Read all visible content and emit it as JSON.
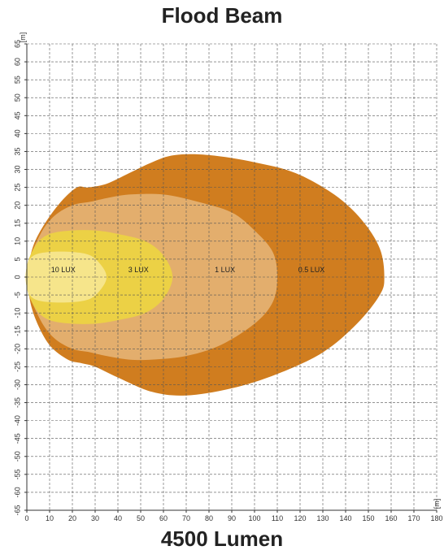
{
  "chart_data": {
    "type": "area",
    "title": "Flood Beam",
    "caption": "4500 Lumen",
    "x_unit": "[m]",
    "y_unit": "[m]",
    "xlim": [
      0,
      180
    ],
    "ylim": [
      -65,
      65
    ],
    "x_ticks": [
      0,
      10,
      20,
      30,
      40,
      50,
      60,
      70,
      80,
      90,
      100,
      110,
      120,
      130,
      140,
      150,
      160,
      170,
      180
    ],
    "y_ticks": [
      -65,
      -60,
      -55,
      -50,
      -45,
      -40,
      -35,
      -30,
      -25,
      -20,
      -15,
      -10,
      -5,
      0,
      5,
      10,
      15,
      20,
      25,
      30,
      35,
      40,
      45,
      50,
      55,
      60,
      65
    ],
    "grid": true,
    "zones": [
      {
        "name": "0.5 LUX",
        "color": "#d07d1f",
        "label_at": [
          125,
          2
        ],
        "outline": [
          [
            1,
            -5
          ],
          [
            4,
            -12
          ],
          [
            10,
            -19
          ],
          [
            18,
            -23
          ],
          [
            24,
            -24
          ],
          [
            30,
            -25
          ],
          [
            40,
            -28
          ],
          [
            55,
            -32
          ],
          [
            70,
            -33
          ],
          [
            90,
            -31
          ],
          [
            110,
            -27
          ],
          [
            130,
            -21
          ],
          [
            145,
            -13
          ],
          [
            155,
            -5
          ],
          [
            157,
            0
          ],
          [
            155,
            8
          ],
          [
            147,
            16
          ],
          [
            135,
            23
          ],
          [
            118,
            29
          ],
          [
            100,
            32
          ],
          [
            80,
            34
          ],
          [
            65,
            34
          ],
          [
            55,
            32
          ],
          [
            45,
            29
          ],
          [
            35,
            26
          ],
          [
            27,
            25
          ],
          [
            22,
            25
          ],
          [
            15,
            21
          ],
          [
            8,
            15
          ],
          [
            3,
            9
          ],
          [
            1,
            3
          ]
        ]
      },
      {
        "name": "1 LUX",
        "color": "#e3ae6d",
        "label_at": [
          87,
          2
        ],
        "outline": [
          [
            1,
            -4
          ],
          [
            6,
            -12
          ],
          [
            12,
            -17
          ],
          [
            20,
            -20
          ],
          [
            28,
            -21
          ],
          [
            35,
            -22
          ],
          [
            45,
            -23
          ],
          [
            55,
            -23
          ],
          [
            70,
            -22
          ],
          [
            85,
            -19
          ],
          [
            100,
            -13
          ],
          [
            108,
            -7
          ],
          [
            110,
            0
          ],
          [
            108,
            7
          ],
          [
            100,
            13
          ],
          [
            90,
            18
          ],
          [
            75,
            21
          ],
          [
            60,
            23
          ],
          [
            45,
            23
          ],
          [
            35,
            22
          ],
          [
            28,
            21
          ],
          [
            20,
            20
          ],
          [
            12,
            17
          ],
          [
            6,
            12
          ],
          [
            1,
            4
          ]
        ]
      },
      {
        "name": "3 LUX",
        "color": "#ecd145",
        "label_at": [
          49,
          2
        ],
        "outline": [
          [
            0,
            -3
          ],
          [
            4,
            -9
          ],
          [
            10,
            -12
          ],
          [
            20,
            -13
          ],
          [
            30,
            -13
          ],
          [
            40,
            -12
          ],
          [
            52,
            -10
          ],
          [
            60,
            -6
          ],
          [
            64,
            0
          ],
          [
            60,
            6
          ],
          [
            52,
            10
          ],
          [
            40,
            12
          ],
          [
            30,
            13
          ],
          [
            20,
            13
          ],
          [
            10,
            12
          ],
          [
            4,
            9
          ],
          [
            0,
            3
          ]
        ]
      },
      {
        "name": "10 LUX",
        "color": "#f6e58b",
        "label_at": [
          16,
          2
        ],
        "outline": [
          [
            0,
            -3
          ],
          [
            3,
            -6
          ],
          [
            10,
            -7
          ],
          [
            20,
            -7
          ],
          [
            28,
            -6
          ],
          [
            33,
            -3
          ],
          [
            35,
            0
          ],
          [
            33,
            3
          ],
          [
            28,
            6
          ],
          [
            20,
            7
          ],
          [
            10,
            7
          ],
          [
            3,
            6
          ],
          [
            0,
            3
          ]
        ]
      }
    ]
  }
}
